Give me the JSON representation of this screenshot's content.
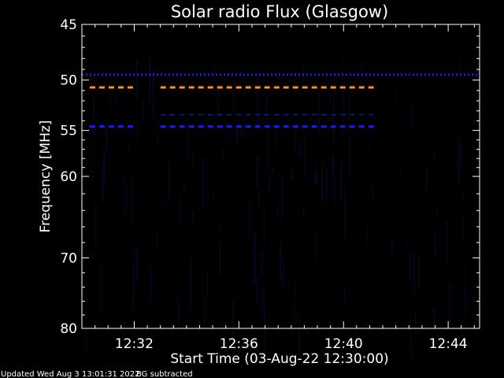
{
  "chart_data": {
    "type": "heatmap",
    "title": "Solar radio Flux (Glasgow)",
    "xlabel": "Start Time (03-Aug-22 12:30:00)",
    "ylabel": "Frequency [MHz]",
    "x_unit": "minutes after 12:30:00 UT",
    "xlim": [
      0,
      15.2
    ],
    "ylim": [
      45,
      80
    ],
    "y_scale": "log (increasing downward)",
    "x_tick_labels": [
      {
        "minutes": 2,
        "label": "12:32"
      },
      {
        "minutes": 6,
        "label": "12:36"
      },
      {
        "minutes": 10,
        "label": "12:40"
      },
      {
        "minutes": 14,
        "label": "12:44"
      }
    ],
    "y_tick_labels": [
      {
        "mhz": 45,
        "label": "45"
      },
      {
        "mhz": 50,
        "label": "50"
      },
      {
        "mhz": 55,
        "label": "55"
      },
      {
        "mhz": 60,
        "label": "60"
      },
      {
        "mhz": 70,
        "label": "70"
      },
      {
        "mhz": 80,
        "label": "80"
      }
    ],
    "minor_y_ticks_mhz": [
      46,
      47,
      48,
      49,
      51,
      52,
      53,
      54,
      56,
      57,
      58,
      59,
      62,
      64,
      66,
      68,
      72,
      74,
      76,
      78
    ],
    "minor_x_ticks_min": [
      0.5,
      1,
      1.5,
      2.5,
      3,
      3.5,
      4,
      4.5,
      5,
      5.5,
      6.5,
      7,
      7.5,
      8,
      8.5,
      9,
      9.5,
      10.5,
      11,
      11.5,
      12,
      12.5,
      13,
      13.5,
      14.5,
      15
    ],
    "series": [
      {
        "freq_mhz": 49.5,
        "start_min": 0,
        "end_min": 15.2,
        "color": "#1e1ee6"
      },
      {
        "freq_mhz": 50.7,
        "start_min": 0.3,
        "end_min": 2.0,
        "color": "#ff8c28"
      },
      {
        "freq_mhz": 50.7,
        "start_min": 3.0,
        "end_min": 11.3,
        "color": "#ff8c28"
      },
      {
        "freq_mhz": 53.4,
        "start_min": 3.0,
        "end_min": 11.3,
        "color": "#2020d0"
      },
      {
        "freq_mhz": 54.6,
        "start_min": 0.3,
        "end_min": 2.0,
        "color": "#1a1aff"
      },
      {
        "freq_mhz": 54.6,
        "start_min": 3.0,
        "end_min": 11.3,
        "color": "#1a1aff"
      }
    ],
    "background_color": "#000000",
    "noise_color": "#08082a"
  },
  "footer": {
    "updated": "Updated Wed Aug  3 13:01:31 2022",
    "note": "BG subtracted"
  }
}
